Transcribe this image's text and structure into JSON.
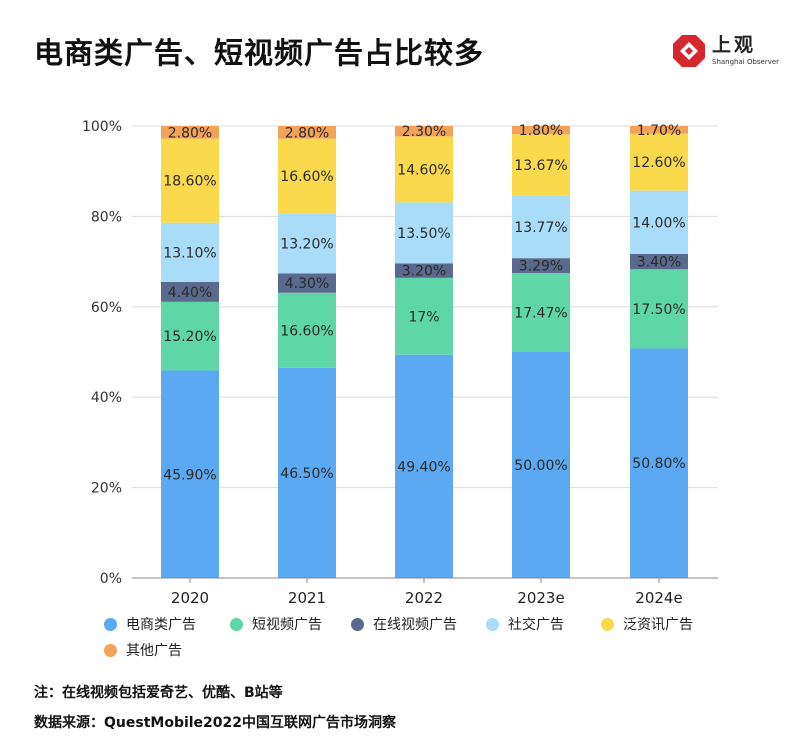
{
  "header": {
    "title": "电商类广告、短视频广告占比较多",
    "logo_text": "上观",
    "logo_sub": "Shanghai Observer"
  },
  "chart_data": {
    "type": "bar",
    "stacked": true,
    "title": "电商类广告、短视频广告占比较多",
    "categories": [
      "2020",
      "2021",
      "2022",
      "2023e",
      "2024e"
    ],
    "ylim": [
      0,
      100
    ],
    "yticks": [
      "0%",
      "20%",
      "40%",
      "60%",
      "80%",
      "100%"
    ],
    "grid": true,
    "legend_position": "bottom",
    "series": [
      {
        "name": "电商类广告",
        "color": "#5aa9f2",
        "values": [
          45.9,
          46.5,
          49.4,
          50.0,
          50.8
        ],
        "labels": [
          "45.90%",
          "46.50%",
          "49.40%",
          "50.00%",
          "50.80%"
        ]
      },
      {
        "name": "短视频广告",
        "color": "#5fd6a8",
        "values": [
          15.2,
          16.6,
          17.0,
          17.47,
          17.5
        ],
        "labels": [
          "15.20%",
          "16.60%",
          "17%",
          "17.47%",
          "17.50%"
        ]
      },
      {
        "name": "在线视频广告",
        "color": "#5a6a8e",
        "values": [
          4.4,
          4.3,
          3.2,
          3.29,
          3.4
        ],
        "labels": [
          "4.40%",
          "4.30%",
          "3.20%",
          "3.29%",
          "3.40%"
        ]
      },
      {
        "name": "社交广告",
        "color": "#a8dcf8",
        "values": [
          13.1,
          13.2,
          13.5,
          13.77,
          14.0
        ],
        "labels": [
          "13.10%",
          "13.20%",
          "13.50%",
          "13.77%",
          "14.00%"
        ]
      },
      {
        "name": "泛资讯广告",
        "color": "#fbd94d",
        "values": [
          18.6,
          16.6,
          14.6,
          13.67,
          12.6
        ],
        "labels": [
          "18.60%",
          "16.60%",
          "14.60%",
          "13.67%",
          "12.60%"
        ]
      },
      {
        "name": "其他广告",
        "color": "#f4a258",
        "values": [
          2.8,
          2.8,
          2.3,
          1.8,
          1.7
        ],
        "labels": [
          "2.80%",
          "2.80%",
          "2.30%",
          "1.80%",
          "1.70%"
        ]
      }
    ]
  },
  "notes": {
    "note1": "注：在线视频包括爱奇艺、优酷、B站等",
    "note2": "数据来源：QuestMobile2022中国互联网广告市场洞察"
  }
}
